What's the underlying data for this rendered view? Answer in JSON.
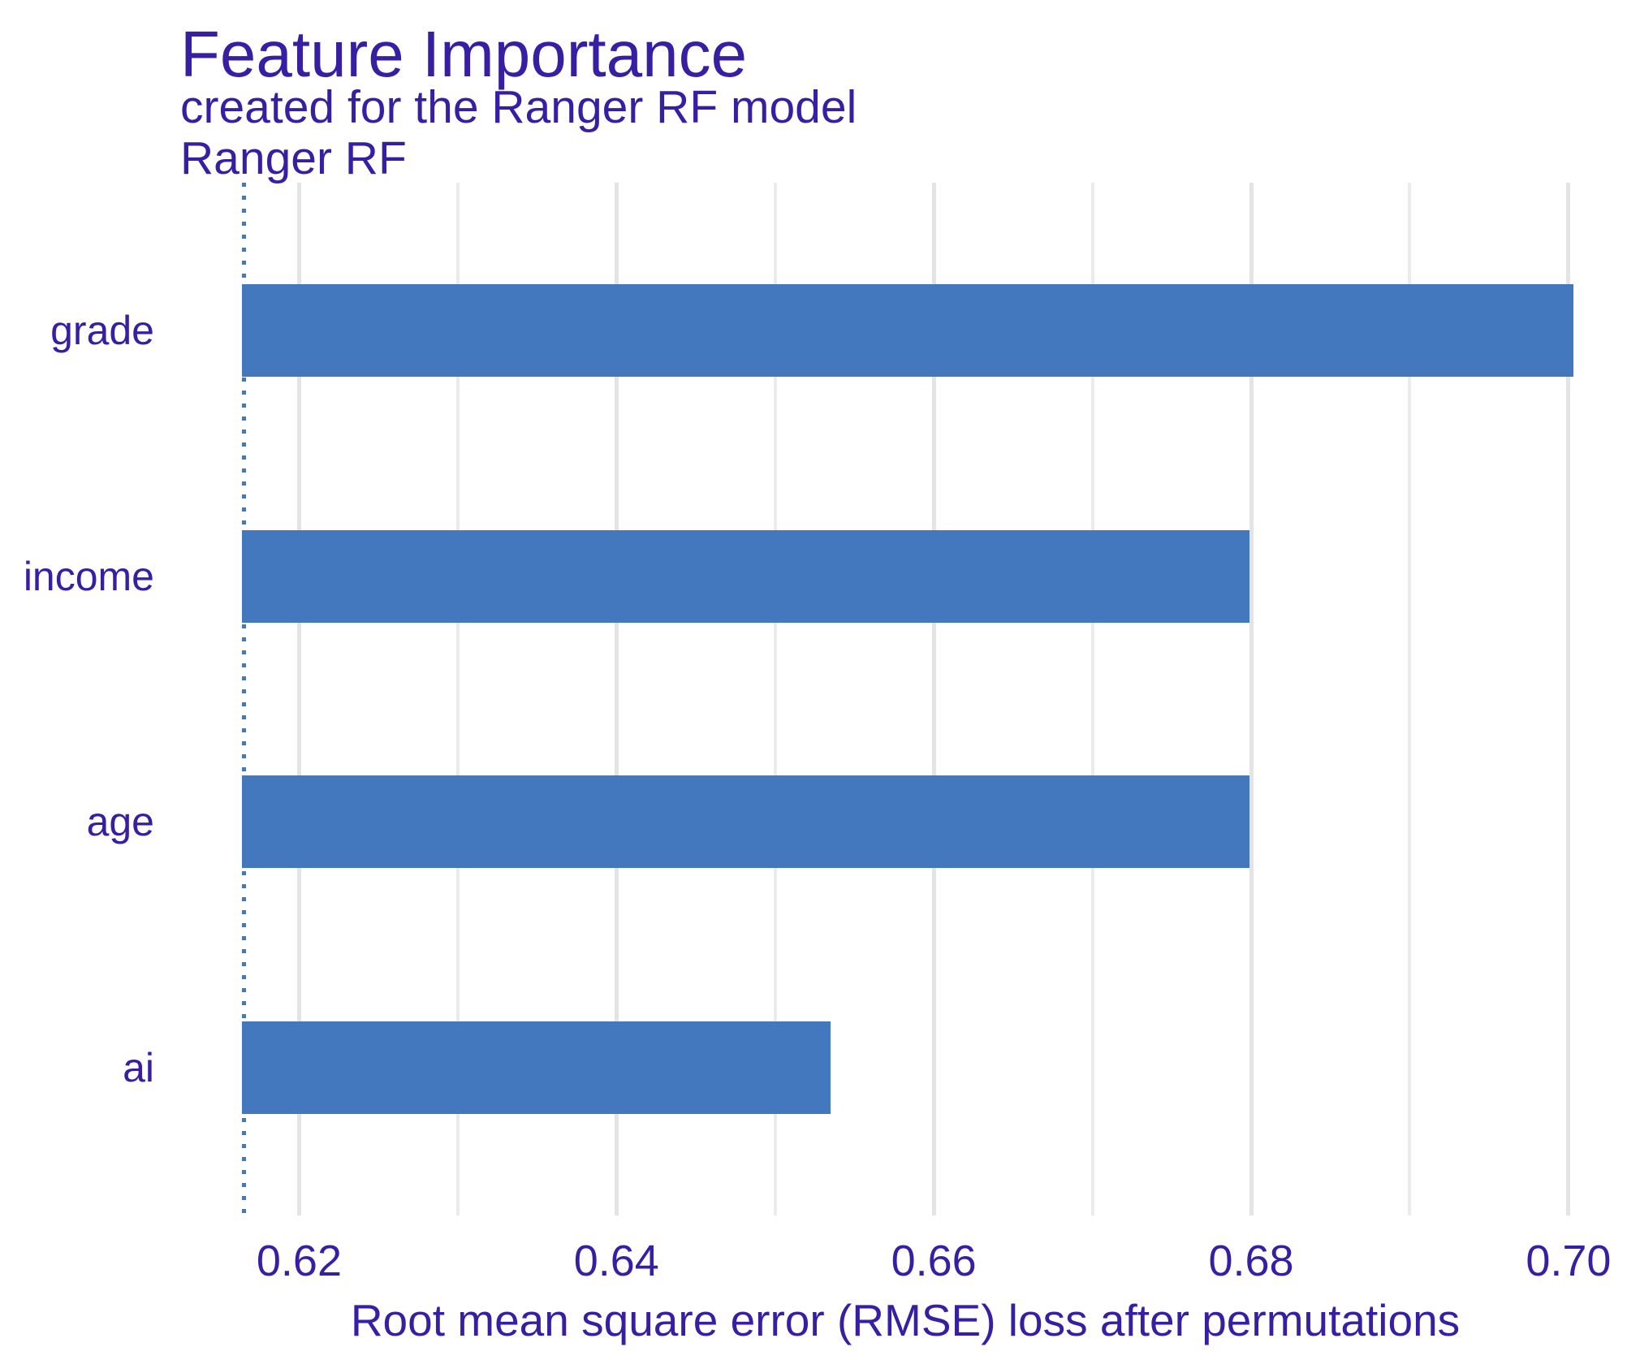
{
  "chart_data": {
    "type": "bar",
    "orientation": "horizontal",
    "title": "Feature Importance",
    "subtitle": "created for the Ranger RF model",
    "facet_label": "Ranger RF",
    "xlabel": "Root mean square error (RMSE) loss after permutations",
    "categories": [
      "grade",
      "income",
      "age",
      "ai"
    ],
    "values": [
      0.7003,
      0.6799,
      0.6799,
      0.6535
    ],
    "baseline": 0.6165,
    "x_ticks": [
      0.62,
      0.64,
      0.66,
      0.68,
      0.7
    ],
    "x_tick_labels": [
      "0.62",
      "0.64",
      "0.66",
      "0.68",
      "0.70"
    ],
    "x_minor_gridlines": [
      0.63,
      0.65,
      0.67,
      0.69
    ],
    "xlim": [
      0.6122,
      0.7042
    ],
    "grid": "vertical-only",
    "legend": "none",
    "colors": {
      "bar": "#4378bf",
      "baseline_line": "#4378bf",
      "text": "#371ea3",
      "grid_major": "#e4e4e4",
      "grid_minor": "#ebebeb",
      "background": "#ffffff"
    }
  }
}
